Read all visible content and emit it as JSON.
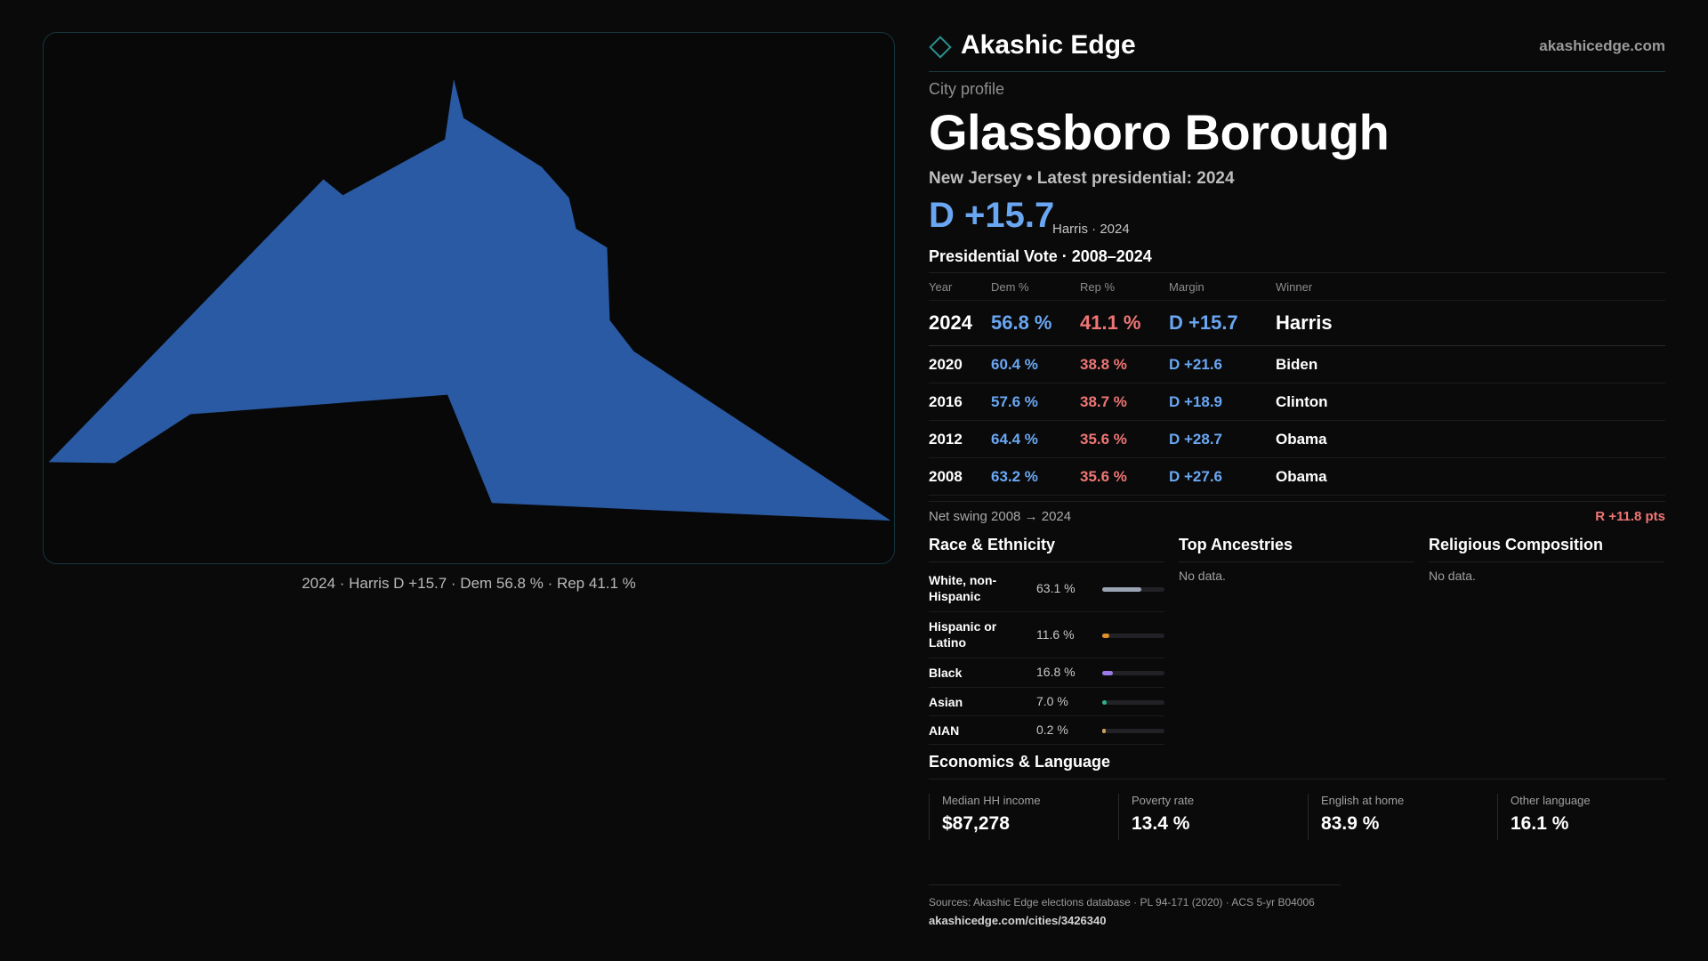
{
  "brand": {
    "name": "Akashic Edge",
    "site": "akashicedge.com",
    "accent": "#2a8f8a"
  },
  "map": {
    "shape_color": "#2a5aa3",
    "caption": "2024 · Harris D +15.7 · Dem 56.8 % · Rep 41.1 %"
  },
  "profile": {
    "eyebrow": "City profile",
    "city": "Glassboro Borough",
    "subline": "New Jersey • Latest presidential: 2024",
    "margin": "D +15.7",
    "margin_note": "Harris · 2024"
  },
  "vote_table": {
    "title": "Presidential Vote · 2008–2024",
    "headers": [
      "Year",
      "Dem %",
      "Rep %",
      "Margin",
      "Winner"
    ],
    "rows": [
      {
        "year": "2024",
        "dem": "56.8 %",
        "rep": "41.1 %",
        "margin": "D +15.7",
        "winner": "Harris"
      },
      {
        "year": "2020",
        "dem": "60.4 %",
        "rep": "38.8 %",
        "margin": "D +21.6",
        "winner": "Biden"
      },
      {
        "year": "2016",
        "dem": "57.6 %",
        "rep": "38.7 %",
        "margin": "D +18.9",
        "winner": "Clinton"
      },
      {
        "year": "2012",
        "dem": "64.4 %",
        "rep": "35.6 %",
        "margin": "D +28.7",
        "winner": "Obama"
      },
      {
        "year": "2008",
        "dem": "63.2 %",
        "rep": "35.6 %",
        "margin": "D +27.6",
        "winner": "Obama"
      }
    ],
    "dem_color": "#6aa7f2",
    "rep_color": "#ef7674"
  },
  "swing": {
    "label": "Net swing 2008 → 2024",
    "value": "R +11.8 pts"
  },
  "race": {
    "title": "Race & Ethnicity",
    "items": [
      {
        "name": "White, non-Hispanic",
        "pct": "63.1 %",
        "value": 63.1,
        "color": "#9aa3b2"
      },
      {
        "name": "Hispanic or Latino",
        "pct": "11.6 %",
        "value": 11.6,
        "color": "#e0902a"
      },
      {
        "name": "Black",
        "pct": "16.8 %",
        "value": 16.8,
        "color": "#9b7ae6"
      },
      {
        "name": "Asian",
        "pct": "7.0 %",
        "value": 7.0,
        "color": "#2fb38a"
      },
      {
        "name": "AIAN",
        "pct": "0.2 %",
        "value": 0.2,
        "color": "#c9a35a"
      }
    ]
  },
  "ancestries": {
    "title": "Top Ancestries",
    "empty": "No data."
  },
  "religion": {
    "title": "Religious Composition",
    "empty": "No data."
  },
  "economics": {
    "title": "Economics & Language",
    "stats": [
      {
        "label": "Median HH income",
        "value": "$87,278"
      },
      {
        "label": "Poverty rate",
        "value": "13.4 %"
      },
      {
        "label": "English at home",
        "value": "83.9 %"
      },
      {
        "label": "Other language",
        "value": "16.1 %"
      }
    ]
  },
  "sources": {
    "text": "Sources: Akashic Edge elections database · PL 94-171 (2020) · ACS 5-yr B04006",
    "url": "akashicedge.com/cities/3426340"
  }
}
